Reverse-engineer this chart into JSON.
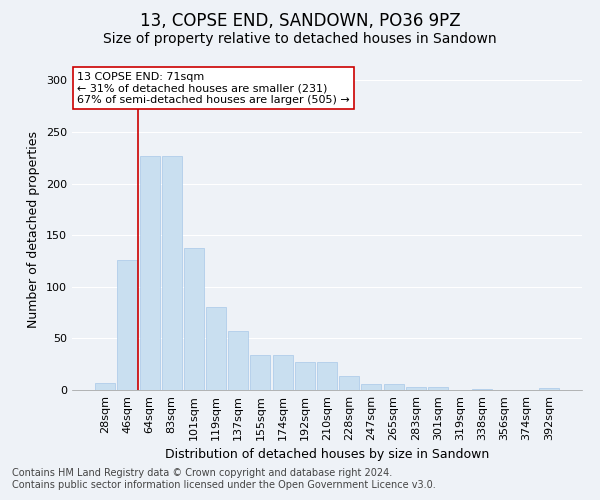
{
  "title": "13, COPSE END, SANDOWN, PO36 9PZ",
  "subtitle": "Size of property relative to detached houses in Sandown",
  "xlabel": "Distribution of detached houses by size in Sandown",
  "ylabel": "Number of detached properties",
  "categories": [
    "28sqm",
    "46sqm",
    "64sqm",
    "83sqm",
    "101sqm",
    "119sqm",
    "137sqm",
    "155sqm",
    "174sqm",
    "192sqm",
    "210sqm",
    "228sqm",
    "247sqm",
    "265sqm",
    "283sqm",
    "301sqm",
    "319sqm",
    "338sqm",
    "356sqm",
    "374sqm",
    "392sqm"
  ],
  "values": [
    7,
    126,
    227,
    227,
    138,
    80,
    57,
    34,
    34,
    27,
    27,
    14,
    6,
    6,
    3,
    3,
    0,
    1,
    0,
    0,
    2
  ],
  "bar_color": "#c9dff0",
  "bar_edge_color": "#a8c8e8",
  "property_line_color": "#cc0000",
  "annotation_text": "13 COPSE END: 71sqm\n← 31% of detached houses are smaller (231)\n67% of semi-detached houses are larger (505) →",
  "annotation_box_color": "#ffffff",
  "annotation_box_edge_color": "#cc0000",
  "ylim": [
    0,
    310
  ],
  "yticks": [
    0,
    50,
    100,
    150,
    200,
    250,
    300
  ],
  "background_color": "#eef2f7",
  "grid_color": "#ffffff",
  "footer_line1": "Contains HM Land Registry data © Crown copyright and database right 2024.",
  "footer_line2": "Contains public sector information licensed under the Open Government Licence v3.0.",
  "title_fontsize": 12,
  "subtitle_fontsize": 10,
  "axis_label_fontsize": 9,
  "tick_fontsize": 8,
  "annotation_fontsize": 8,
  "footer_fontsize": 7
}
